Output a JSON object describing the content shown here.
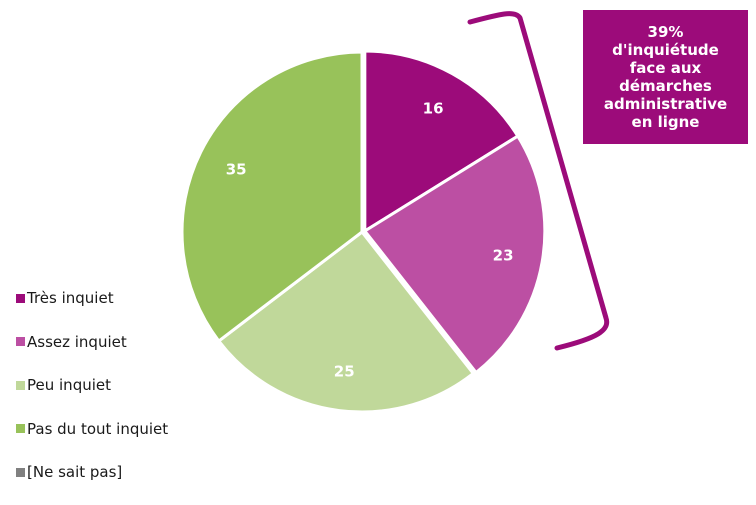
{
  "chart_data": {
    "type": "pie",
    "title": "",
    "unit": "%",
    "categories": [
      "Très inquiet",
      "Assez inquiet",
      "Peu inquiet",
      "Pas du tout inquiet",
      "[Ne sait pas]"
    ],
    "values": [
      16,
      23,
      25,
      35,
      0
    ],
    "labels": [
      "16",
      "23",
      "25",
      "35",
      ""
    ],
    "colors": [
      "#9C0B7A",
      "#BC4FA3",
      "#C0D89A",
      "#98C25A",
      "#808080"
    ],
    "start_angle": "12 o'clock",
    "direction": "clockwise",
    "exploded_group": [
      "Très inquiet",
      "Assez inquiet"
    ],
    "legend_position": "left-bottom",
    "bracket_color": "#9C0B7A"
  },
  "callout": {
    "text": "39%\nd'inquiétude\nface aux\ndémarches\nadministrative\nen ligne",
    "background": "#9C0B7A"
  }
}
